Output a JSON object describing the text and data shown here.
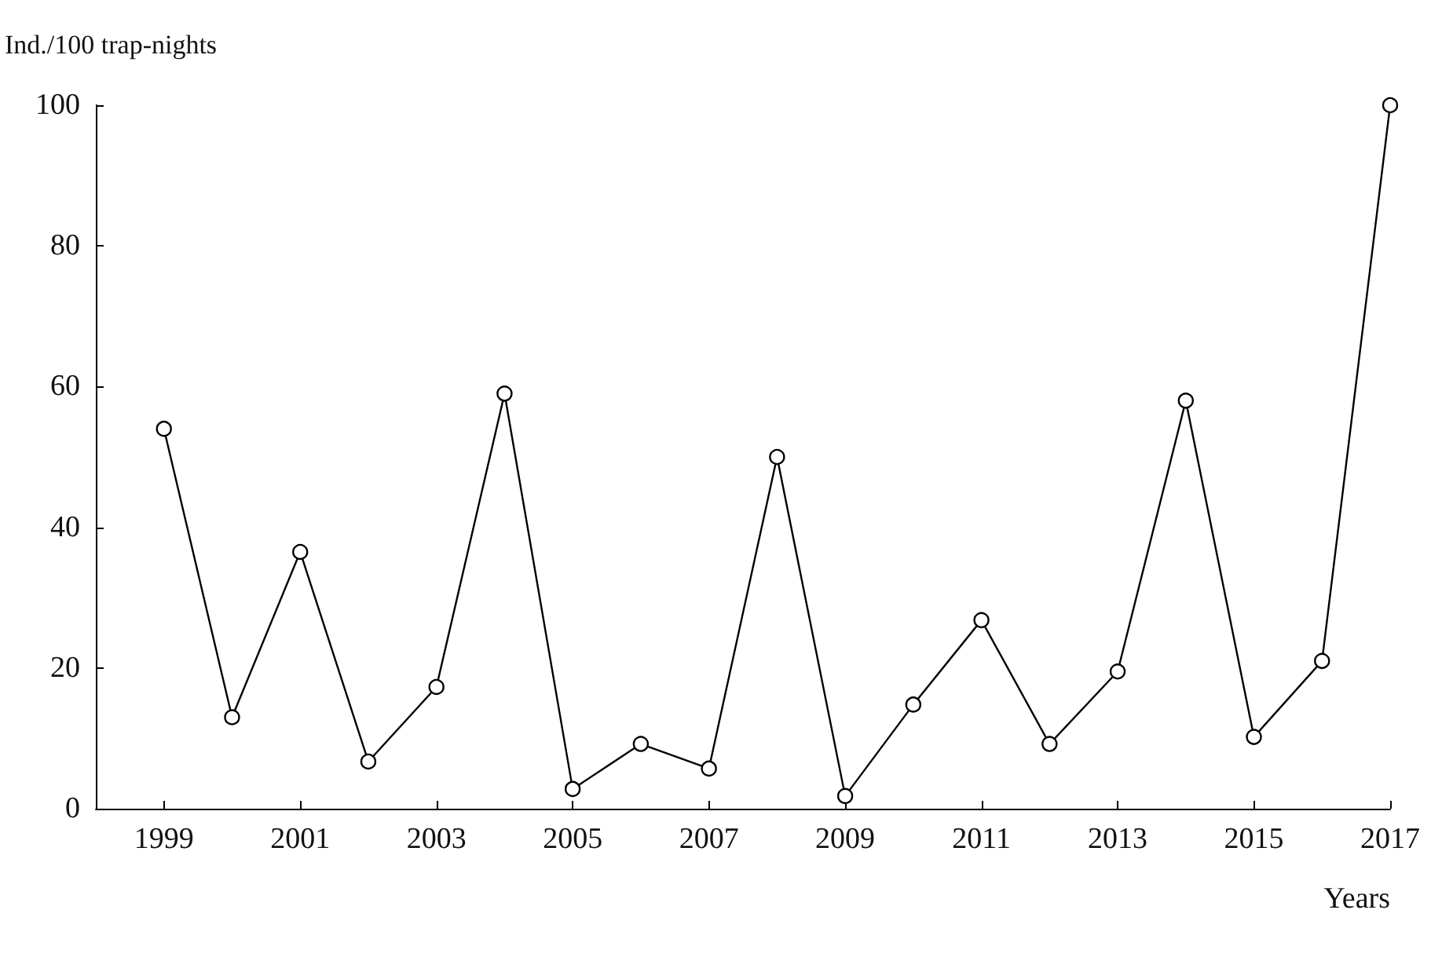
{
  "chart_data": {
    "type": "line",
    "ylabel": "Ind./100 trap-nights",
    "xlabel": "Years",
    "x": [
      1999,
      2000,
      2001,
      2002,
      2003,
      2004,
      2005,
      2006,
      2007,
      2008,
      2009,
      2010,
      2011,
      2012,
      2013,
      2014,
      2015,
      2016,
      2017
    ],
    "series": [
      {
        "color": "#000000",
        "values": [
          54,
          13,
          36.5,
          6.7,
          17.3,
          59,
          2.8,
          9.2,
          5.7,
          50,
          1.8,
          14.8,
          26.8,
          9.2,
          19.5,
          58,
          10.2,
          21,
          100
        ]
      }
    ],
    "xlim": [
      1998,
      2017
    ],
    "xticks": [
      1999,
      2001,
      2003,
      2005,
      2007,
      2009,
      2011,
      2013,
      2015,
      2017
    ],
    "ylim": [
      0,
      100
    ],
    "yticks": [
      0,
      20,
      40,
      60,
      80,
      100
    ],
    "marker": "circle",
    "line_style": "solid"
  }
}
